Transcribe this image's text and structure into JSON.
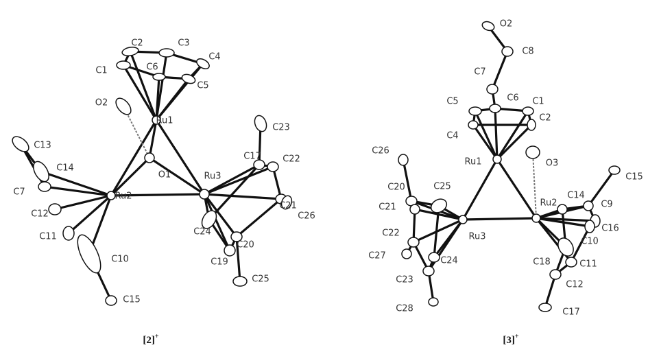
{
  "structures": [
    {
      "caption": "[2]",
      "charge": "+",
      "atoms": [
        "C2",
        "C3",
        "C4",
        "C1",
        "C6",
        "C5",
        "O2",
        "Ru1",
        "C23",
        "C13",
        "C14",
        "O1",
        "C17",
        "C22",
        "Ru3",
        "C7",
        "Ru2",
        "C12",
        "C11",
        "C21",
        "C26",
        "C24",
        "C10",
        "C20",
        "C19",
        "C25",
        "C15"
      ]
    },
    {
      "caption": "[3]",
      "charge": "+",
      "atoms": [
        "O2",
        "C8",
        "C7",
        "C5",
        "C6",
        "C1",
        "C2",
        "C4",
        "Ru1",
        "C26",
        "O3",
        "C15",
        "C20",
        "C25",
        "C14",
        "Ru2",
        "C9",
        "C21",
        "C16",
        "C22",
        "Ru3",
        "C10",
        "C27",
        "C24",
        "C18",
        "C11",
        "C23",
        "C12",
        "C28",
        "C17"
      ]
    }
  ]
}
